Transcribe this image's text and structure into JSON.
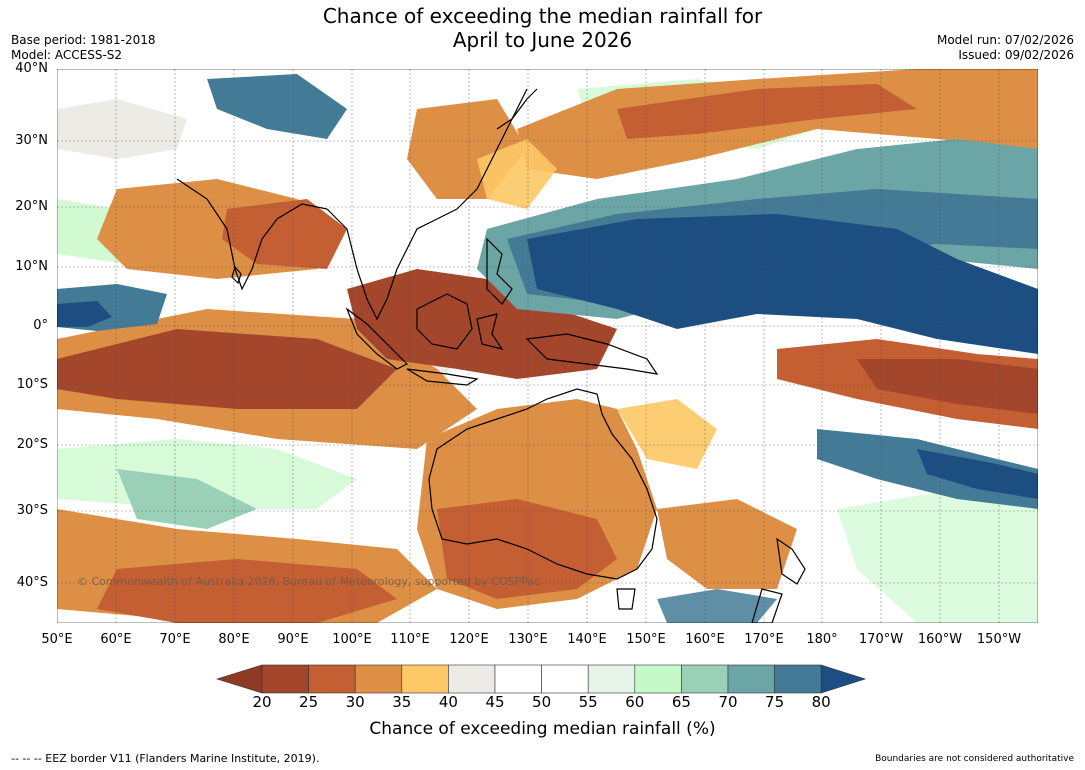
{
  "title_line1": "Chance of exceeding the median rainfall for",
  "title_line2": "April to June 2026",
  "base_period": "Base period: 1981-2018",
  "model": "Model: ACCESS-S2",
  "model_run": "Model run: 07/02/2026",
  "issued": "Issued: 09/02/2026",
  "lat_labels": [
    "40°N",
    "30°N",
    "20°N",
    "10°N",
    "0°",
    "10°S",
    "20°S",
    "30°S",
    "40°S"
  ],
  "lon_labels": [
    "50°E",
    "60°E",
    "70°E",
    "80°E",
    "90°E",
    "100°E",
    "110°E",
    "120°E",
    "130°E",
    "140°E",
    "150°E",
    "160°E",
    "170°E",
    "180°",
    "170°W",
    "160°W",
    "150°W"
  ],
  "copyright": "© Commonwealth of Australia 2026, Bureau of Meteorology, supported by COSPPac",
  "colorbar": {
    "title": "Chance of exceeding median rainfall (%)",
    "ticks": [
      "20",
      "25",
      "30",
      "35",
      "40",
      "45",
      "50",
      "55",
      "60",
      "65",
      "70",
      "75",
      "80"
    ],
    "colors": [
      "#a3462b",
      "#c45e33",
      "#dc8f45",
      "#fdc865",
      "#ecebe6",
      "#ffffff",
      "#ffffff",
      "#e6f4e8",
      "#c6f9c8",
      "#99d0b7",
      "#6ba5a6",
      "#437b97",
      "#1c4e82"
    ],
    "under_color": "#8f3a25",
    "over_color": "#1c4e82"
  },
  "footnote_left": "--  --  -- EEZ border V11 (Flanders Marine Institute, 2019).",
  "footnote_right": "Boundaries are not considered authoritative"
}
